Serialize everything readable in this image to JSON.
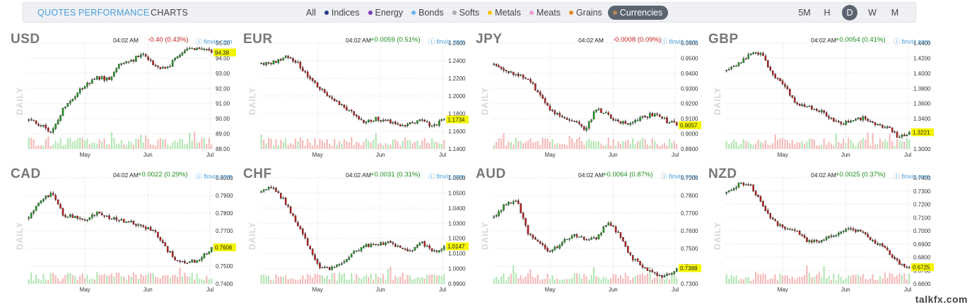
{
  "nav": {
    "tabs": [
      {
        "label": "QUOTES",
        "state": "link"
      },
      {
        "label": "PERFORMANCE",
        "state": "link"
      },
      {
        "label": "CHARTS",
        "state": "active"
      }
    ],
    "filters": [
      {
        "label": "All",
        "color": "",
        "active": false
      },
      {
        "label": "Indices",
        "color": "#2b3a8f",
        "active": false
      },
      {
        "label": "Energy",
        "color": "#7a3bb6",
        "active": false
      },
      {
        "label": "Bonds",
        "color": "#6ab0ec",
        "active": false
      },
      {
        "label": "Softs",
        "color": "#a8a8a8",
        "active": false
      },
      {
        "label": "Metals",
        "color": "#f2c200",
        "active": false
      },
      {
        "label": "Meats",
        "color": "#f09ad0",
        "active": false
      },
      {
        "label": "Grains",
        "color": "#e08a24",
        "active": false
      },
      {
        "label": "Currencies",
        "color": "#b8865a",
        "active": true
      }
    ],
    "timeframes": [
      {
        "label": "5M",
        "active": false
      },
      {
        "label": "H",
        "active": false
      },
      {
        "label": "D",
        "active": true
      },
      {
        "label": "W",
        "active": false
      },
      {
        "label": "M",
        "active": false
      }
    ]
  },
  "side_label": "DAILY",
  "source": "finviz.com",
  "months": [
    "May",
    "Jun",
    "Jul"
  ],
  "colors": {
    "up": "#1ea51e",
    "down": "#c81e1e",
    "vol_up": "#b4e6b4",
    "vol_down": "#f5b9b9",
    "last_price_bg": "#f5f500"
  },
  "watermark": "talkfx.com",
  "charts": [
    {
      "symbol": "USD",
      "time": "04:02 AM",
      "change": "-0.40 (0.43%)",
      "direction": "down",
      "y_ticks": [
        "95.00",
        "94.00",
        "93.00",
        "92.00",
        "91.00",
        "90.00",
        "89.00",
        "88.00"
      ],
      "ylim": [
        88.0,
        95.0
      ],
      "last_price": "94.38",
      "path": [
        90.0,
        89.6,
        89.1,
        90.6,
        91.5,
        92.3,
        92.7,
        92.6,
        93.6,
        93.8,
        94.4,
        93.5,
        93.2,
        94.2,
        94.6,
        94.6,
        94.38
      ]
    },
    {
      "symbol": "EUR",
      "time": "04:02 AM",
      "change": "+0.0059 (0.51%)",
      "direction": "up",
      "y_ticks": [
        "1.2600",
        "1.2400",
        "1.2200",
        "1.2000",
        "1.1800",
        "1.1600",
        "1.1400"
      ],
      "ylim": [
        1.14,
        1.26
      ],
      "last_price": "1.1734",
      "path": [
        1.237,
        1.238,
        1.244,
        1.24,
        1.222,
        1.21,
        1.2,
        1.19,
        1.18,
        1.169,
        1.174,
        1.172,
        1.166,
        1.168,
        1.172,
        1.165,
        1.1734
      ]
    },
    {
      "symbol": "JPY",
      "time": "04:02 AM",
      "change": "-0.0008 (0.09%)",
      "direction": "down",
      "y_ticks": [
        "0.9600",
        "0.9500",
        "0.9400",
        "0.9300",
        "0.9200",
        "0.9100",
        "0.9000",
        "0.8900"
      ],
      "ylim": [
        0.89,
        0.96
      ],
      "last_price": "0.9057",
      "path": [
        0.945,
        0.942,
        0.939,
        0.937,
        0.925,
        0.915,
        0.911,
        0.909,
        0.903,
        0.917,
        0.912,
        0.908,
        0.906,
        0.911,
        0.913,
        0.909,
        0.9057
      ]
    },
    {
      "symbol": "GBP",
      "time": "04:02 AM",
      "change": "+0.0054 (0.41%)",
      "direction": "up",
      "y_ticks": [
        "1.4400",
        "1.4200",
        "1.4000",
        "1.3800",
        "1.3600",
        "1.3400",
        "1.3200",
        "1.3000"
      ],
      "ylim": [
        1.3,
        1.44
      ],
      "last_price": "1.3221",
      "path": [
        1.405,
        1.411,
        1.425,
        1.428,
        1.4,
        1.385,
        1.36,
        1.356,
        1.352,
        1.343,
        1.332,
        1.338,
        1.341,
        1.331,
        1.33,
        1.316,
        1.3221
      ]
    },
    {
      "symbol": "CAD",
      "time": "04:02 AM",
      "change": "+0.0022 (0.29%)",
      "direction": "up",
      "y_ticks": [
        "0.8000",
        "0.7900",
        "0.7800",
        "0.7700",
        "0.7600",
        "0.7500",
        "0.7400"
      ],
      "ylim": [
        0.74,
        0.8
      ],
      "last_price": "0.7606",
      "path": [
        0.777,
        0.787,
        0.791,
        0.779,
        0.778,
        0.776,
        0.78,
        0.778,
        0.776,
        0.775,
        0.772,
        0.77,
        0.76,
        0.753,
        0.752,
        0.754,
        0.7606
      ]
    },
    {
      "symbol": "CHF",
      "time": "04:02 AM",
      "change": "+0.0031 (0.31%)",
      "direction": "up",
      "y_ticks": [
        "1.0600",
        "1.0500",
        "1.0400",
        "1.0300",
        "1.0200",
        "1.0100",
        "1.0000",
        "0.9900"
      ],
      "ylim": [
        0.99,
        1.06
      ],
      "last_price": "1.0147",
      "path": [
        1.052,
        1.053,
        1.045,
        1.031,
        1.017,
        1.002,
        1.0,
        1.003,
        1.011,
        1.015,
        1.016,
        1.017,
        1.014,
        1.012,
        1.018,
        1.011,
        1.0147
      ]
    },
    {
      "symbol": "AUD",
      "time": "04:02 AM",
      "change": "+0.0064 (0.87%)",
      "direction": "up",
      "y_ticks": [
        "0.7900",
        "0.7800",
        "0.7700",
        "0.7600",
        "0.7500",
        "0.7400",
        "0.7300"
      ],
      "ylim": [
        0.73,
        0.79
      ],
      "last_price": "0.7388",
      "path": [
        0.768,
        0.775,
        0.778,
        0.758,
        0.753,
        0.748,
        0.754,
        0.757,
        0.755,
        0.756,
        0.765,
        0.758,
        0.745,
        0.74,
        0.736,
        0.734,
        0.7388
      ]
    },
    {
      "symbol": "NZD",
      "time": "04:02 AM",
      "change": "+0.0025 (0.37%)",
      "direction": "up",
      "y_ticks": [
        "0.7400",
        "0.7300",
        "0.7200",
        "0.7100",
        "0.7000",
        "0.6900",
        "0.6800",
        "0.6700",
        "0.6600"
      ],
      "ylim": [
        0.66,
        0.74
      ],
      "last_price": "0.6725",
      "path": [
        0.728,
        0.735,
        0.736,
        0.722,
        0.708,
        0.702,
        0.7,
        0.692,
        0.692,
        0.695,
        0.7,
        0.701,
        0.698,
        0.692,
        0.686,
        0.676,
        0.6725
      ]
    }
  ]
}
